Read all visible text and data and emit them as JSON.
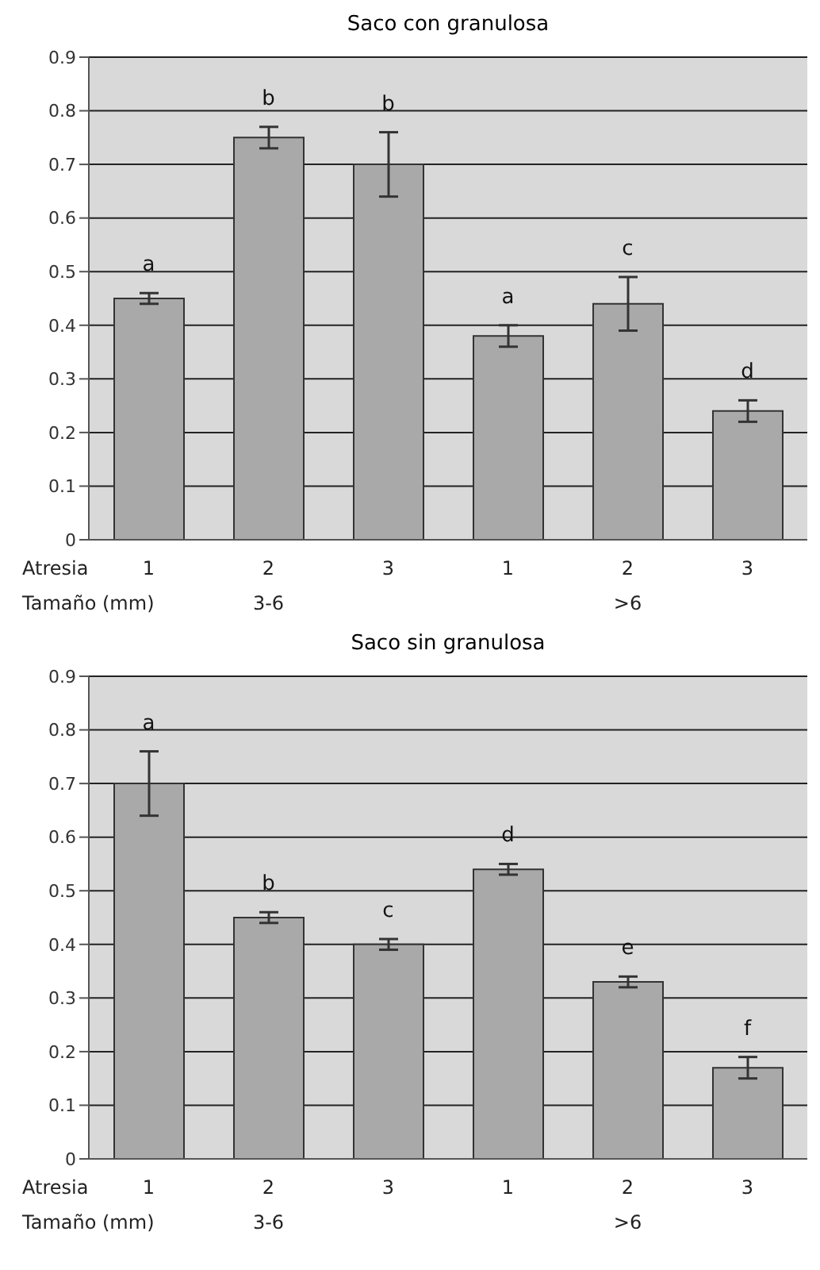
{
  "chart_data": [
    {
      "type": "bar",
      "title": "Saco con granulosa",
      "categories": [
        "1",
        "2",
        "3",
        "1",
        "2",
        "3"
      ],
      "values": [
        0.45,
        0.75,
        0.7,
        0.38,
        0.44,
        0.24
      ],
      "errors": [
        0.01,
        0.02,
        0.06,
        0.02,
        0.05,
        0.02
      ],
      "color": "#a9a9a9",
      "ylim": [
        0,
        0.9
      ],
      "yticks": [
        0,
        0.1,
        0.2,
        0.3,
        0.4,
        0.5,
        0.6,
        0.7,
        0.8,
        0.9
      ],
      "grid": "y",
      "annotations": [
        "Atresia",
        "Tamaño (mm)",
        "3-6",
        ">6",
        "a",
        "b",
        "b",
        "a",
        "c",
        "d"
      ]
    },
    {
      "type": "bar",
      "title": "Saco sin granulosa",
      "categories": [
        "1",
        "2",
        "3",
        "1",
        "2",
        "3"
      ],
      "values": [
        0.7,
        0.45,
        0.4,
        0.54,
        0.33,
        0.17
      ],
      "errors": [
        0.06,
        0.01,
        0.01,
        0.01,
        0.01,
        0.02
      ],
      "color": "#a9a9a9",
      "ylim": [
        0,
        0.9
      ],
      "yticks": [
        0,
        0.1,
        0.2,
        0.3,
        0.4,
        0.5,
        0.6,
        0.7,
        0.8,
        0.9
      ],
      "grid": "y",
      "annotations": [
        "Atresia",
        "Tamaño (mm)",
        "3-6",
        ">6",
        "a",
        "b",
        "c",
        "d",
        "e",
        "f"
      ]
    }
  ]
}
